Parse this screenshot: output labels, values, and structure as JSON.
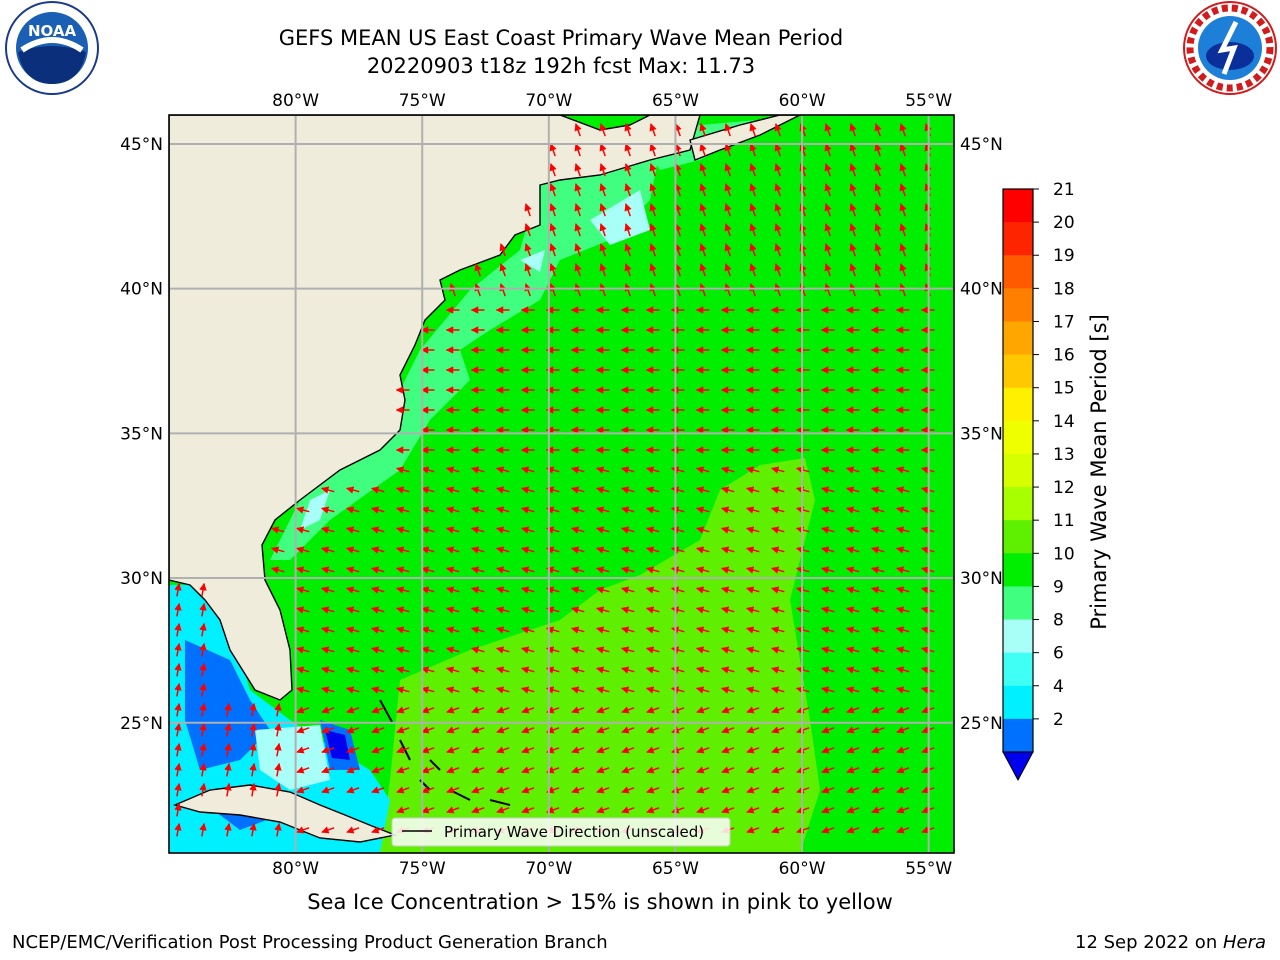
{
  "title": {
    "line1": "GEFS MEAN US East Coast Primary Wave Mean Period",
    "line2": "20220903 t18z 192h fcst   Max: 11.73"
  },
  "map": {
    "lon_range": [
      -85,
      -54
    ],
    "lat_range": [
      20.5,
      46
    ],
    "lon_ticks": [
      "80°W",
      "75°W",
      "70°W",
      "65°W",
      "60°W",
      "55°W"
    ],
    "lat_ticks": [
      "45°N",
      "40°N",
      "35°N",
      "30°N",
      "25°N"
    ],
    "land_color": "#efecdc",
    "grid_color": "#b0b0b0",
    "arrow_color": "#ff0000",
    "legend_text": "Primary Wave Direction (unscaled)"
  },
  "colorbar": {
    "title": "Primary Wave Mean Period [s]",
    "levels": [
      "21",
      "20",
      "19",
      "18",
      "17",
      "16",
      "15",
      "14",
      "13",
      "12",
      "11",
      "10",
      "9",
      "8",
      "6",
      "4",
      "2"
    ],
    "colors": [
      "#ff0000",
      "#ff2400",
      "#ff5a00",
      "#ff7f00",
      "#ffa600",
      "#ffc800",
      "#fff000",
      "#f0ff00",
      "#d6ff00",
      "#a8ff00",
      "#5fef00",
      "#00ee00",
      "#40ff80",
      "#a8fff8",
      "#40fff4",
      "#00f0ff",
      "#0070ff",
      "#0000ee"
    ]
  },
  "caption": "Sea Ice Concentration > 15% is shown in pink to yellow",
  "footer": {
    "left": "NCEP/EMC/Verification Post Processing Product Generation Branch",
    "date": "12 Sep 2022 on ",
    "host": "Hera"
  }
}
